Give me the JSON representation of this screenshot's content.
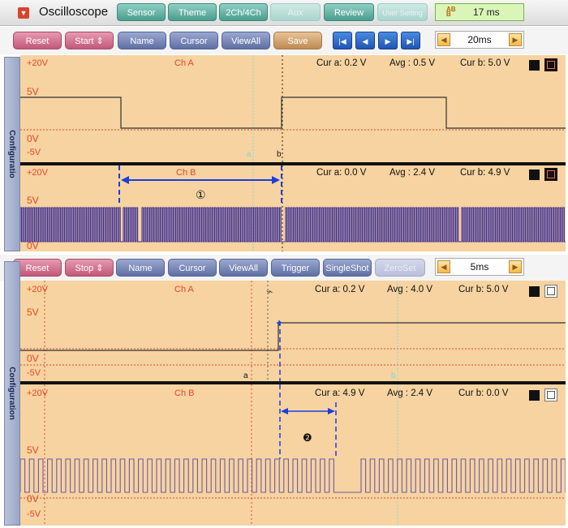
{
  "app": {
    "title": "Oscilloscope"
  },
  "tabs": [
    {
      "label": "Sensor",
      "enabled": true
    },
    {
      "label": "Theme",
      "enabled": true
    },
    {
      "label": "2Ch/4Ch",
      "enabled": true
    },
    {
      "label": "Aux",
      "enabled": false
    },
    {
      "label": "Review",
      "enabled": true
    },
    {
      "label": "User Setting",
      "enabled": false
    }
  ],
  "clock": {
    "value": "17 ms",
    "icon": "AB",
    "icon2": "B"
  },
  "panel1": {
    "toolbar": {
      "reset": "Reset",
      "start": "Start",
      "name": "Name",
      "cursor": "Cursor",
      "viewall": "ViewAll",
      "save": "Save",
      "nav": {
        "first": "|◀",
        "prev": "◀",
        "next": "▶",
        "last": "▶|"
      },
      "time": "20ms"
    },
    "sidebar": "Configuratio",
    "chA": {
      "label": "Ch A",
      "top": "+20V",
      "y5": "5V",
      "y0": "0V",
      "yn5": "-5V",
      "cur_a": "Cur a: 0.2 V",
      "avg": "Avg  : 0.5 V",
      "cur_b": "Cur b: 5.0 V",
      "marker_a": "a",
      "marker_b": "b"
    },
    "chB": {
      "label": "Ch B",
      "top": "+20V",
      "y5": "5V",
      "y0": "0V",
      "cur_a": "Cur a: 0.0 V",
      "avg": "Avg  : 2.4 V",
      "cur_b": "Cur b: 4.9 V",
      "annotation": "①"
    }
  },
  "panel2": {
    "toolbar": {
      "reset": "Reset",
      "stop": "Stop",
      "name": "Name",
      "cursor": "Cursor",
      "viewall": "ViewAll",
      "trigger": "Trigger",
      "singleshot": "SingleShot",
      "zeroset": "ZeroSet",
      "time": "5ms"
    },
    "sidebar": "Configuration",
    "chA": {
      "label": "Ch A",
      "top": "+20V",
      "y5": "5V",
      "y0": "0V",
      "yn5": "-5V",
      "cur_a": "Cur a: 0.2 V",
      "avg": "Avg  : 4.0 V",
      "cur_b": "Cur b: 5.0 V",
      "marker_a": "a",
      "marker_b": "b"
    },
    "chB": {
      "label": "Ch B",
      "top": "+20V",
      "y5": "5V",
      "y0": "0V",
      "yn5": "-5V",
      "cur_a": "Cur a: 4.9 V",
      "avg": "Avg  : 2.4 V",
      "cur_b": "Cur b: 0.0 V",
      "annotation": "❷"
    }
  },
  "colors": {
    "plot_bg": "#f6d3a0",
    "trace": "#333333",
    "trace_b": "#3a2c96",
    "annotation": "#1a3ee0",
    "label_red": "#e8442a",
    "cursor_cyan": "#7fd6cf"
  }
}
